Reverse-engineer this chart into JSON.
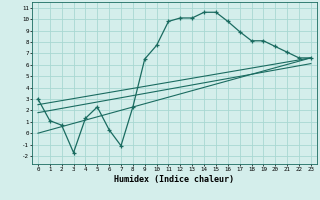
{
  "xlabel": "Humidex (Indice chaleur)",
  "ylabel": "",
  "bg_color": "#d4eeeb",
  "grid_color": "#a8d8d2",
  "line_color": "#1a6b60",
  "xlim": [
    -0.5,
    23.5
  ],
  "ylim": [
    -2.7,
    11.5
  ],
  "xticks": [
    0,
    1,
    2,
    3,
    4,
    5,
    6,
    7,
    8,
    9,
    10,
    11,
    12,
    13,
    14,
    15,
    16,
    17,
    18,
    19,
    20,
    21,
    22,
    23
  ],
  "yticks": [
    -2,
    -1,
    0,
    1,
    2,
    3,
    4,
    5,
    6,
    7,
    8,
    9,
    10,
    11
  ],
  "main_x": [
    0,
    1,
    2,
    3,
    4,
    5,
    6,
    7,
    8,
    9,
    10,
    11,
    12,
    13,
    14,
    15,
    16,
    17,
    18,
    19,
    20,
    21,
    22,
    23
  ],
  "main_y": [
    3.0,
    1.1,
    0.7,
    -1.7,
    1.3,
    2.3,
    0.3,
    -1.1,
    2.3,
    6.5,
    7.7,
    9.8,
    10.1,
    10.1,
    10.6,
    10.6,
    9.8,
    8.9,
    8.1,
    8.1,
    7.6,
    7.1,
    6.6,
    6.6
  ],
  "line1_x": [
    0,
    23
  ],
  "line1_y": [
    2.5,
    6.6
  ],
  "line2_x": [
    0,
    23
  ],
  "line2_y": [
    1.8,
    6.1
  ],
  "line3_x": [
    0,
    23
  ],
  "line3_y": [
    0.0,
    6.6
  ]
}
